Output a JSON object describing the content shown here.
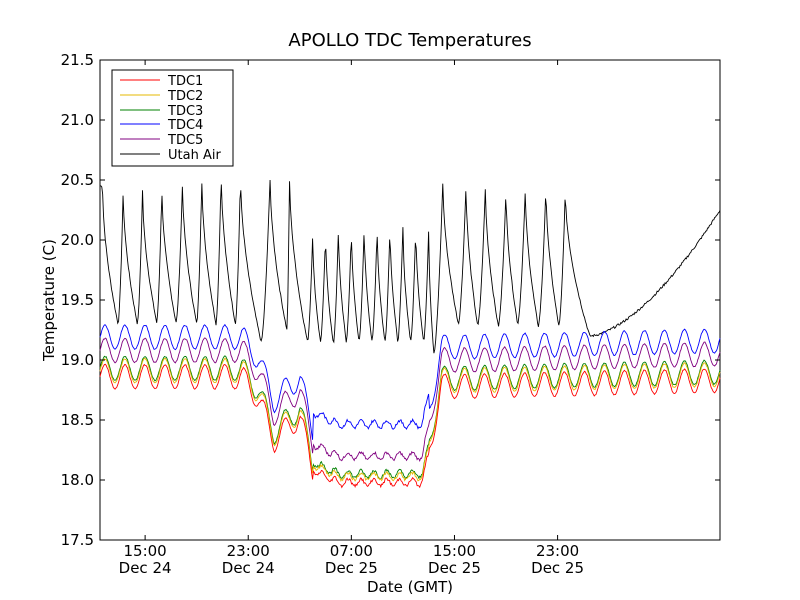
{
  "chart_data": {
    "type": "line",
    "title": "APOLLO TDC Temperatures",
    "xlabel": "Date (GMT)",
    "ylabel": "Temperature (C)",
    "ylim": [
      17.5,
      21.5
    ],
    "xlim_hours": [
      11.5,
      59.6
    ],
    "y_ticks": [
      17.5,
      18.0,
      18.5,
      19.0,
      19.5,
      20.0,
      20.5,
      21.0,
      21.5
    ],
    "y_tick_labels": [
      "17.5",
      "18.0",
      "18.5",
      "19.0",
      "19.5",
      "20.0",
      "20.5",
      "21.0",
      "21.5"
    ],
    "x_ticks": [
      {
        "hours": 15,
        "time": "15:00",
        "date": "Dec 24"
      },
      {
        "hours": 23,
        "time": "23:00",
        "date": "Dec 24"
      },
      {
        "hours": 31,
        "time": "07:00",
        "date": "Dec 25"
      },
      {
        "hours": 39,
        "time": "15:00",
        "date": "Dec 25"
      },
      {
        "hours": 47,
        "time": "23:00",
        "date": "Dec 25"
      }
    ],
    "legend_position": "top-left",
    "series": [
      {
        "name": "TDC1",
        "color": "#ff0000",
        "offset": -0.07
      },
      {
        "name": "TDC2",
        "color": "#e6b800",
        "offset": -0.02
      },
      {
        "name": "TDC3",
        "color": "#008000",
        "offset": 0.0
      },
      {
        "name": "TDC4",
        "color": "#0000ff",
        "offset": 0.26
      },
      {
        "name": "TDC5",
        "color": "#800080",
        "offset": 0.15
      },
      {
        "name": "Utah Air",
        "color": "#000000",
        "offset": 0
      }
    ],
    "tdc_baseline": {
      "hours": [
        11.5,
        22.5,
        23.8,
        25.0,
        27.0,
        28.0,
        30.0,
        36.5,
        37.0,
        38.0,
        40.0,
        59.6
      ],
      "values": [
        18.93,
        18.93,
        18.75,
        18.4,
        18.6,
        18.15,
        18.05,
        18.05,
        18.3,
        18.85,
        18.85,
        18.9
      ]
    },
    "utah_air_peaks": {
      "hours": [
        11.7,
        13.3,
        14.8,
        16.3,
        17.9,
        19.4,
        20.9,
        22.4,
        24.7,
        26.2,
        28.0,
        29.0,
        30.0,
        31.0,
        32.0,
        33.0,
        34.0,
        35.0,
        36.0,
        37.0,
        38.1,
        39.9,
        41.4,
        43.0,
        44.5,
        46.1,
        47.6
      ],
      "values": [
        20.45,
        20.42,
        20.42,
        20.45,
        20.48,
        20.52,
        20.58,
        20.55,
        20.53,
        20.55,
        20.05,
        20.07,
        20.1,
        20.1,
        20.13,
        20.12,
        20.13,
        20.12,
        20.13,
        20.1,
        20.5,
        20.47,
        20.45,
        20.42,
        20.43,
        20.45,
        20.42
      ]
    },
    "utah_air_troughs": {
      "hours": [
        12.9,
        14.4,
        15.9,
        17.4,
        19.0,
        20.5,
        22.0,
        24.0,
        26.0,
        27.6,
        28.6,
        29.6,
        30.6,
        31.6,
        32.6,
        33.6,
        34.6,
        35.6,
        36.6,
        37.4,
        39.3,
        40.8,
        42.4,
        43.9,
        45.5,
        47.1,
        49.5
      ],
      "values": [
        19.3,
        19.3,
        19.31,
        19.31,
        19.3,
        19.3,
        19.3,
        19.15,
        19.25,
        19.15,
        19.15,
        19.13,
        19.15,
        19.15,
        19.15,
        19.15,
        19.15,
        19.15,
        19.15,
        19.05,
        19.3,
        19.28,
        19.28,
        19.3,
        19.28,
        19.28,
        19.2
      ]
    }
  }
}
